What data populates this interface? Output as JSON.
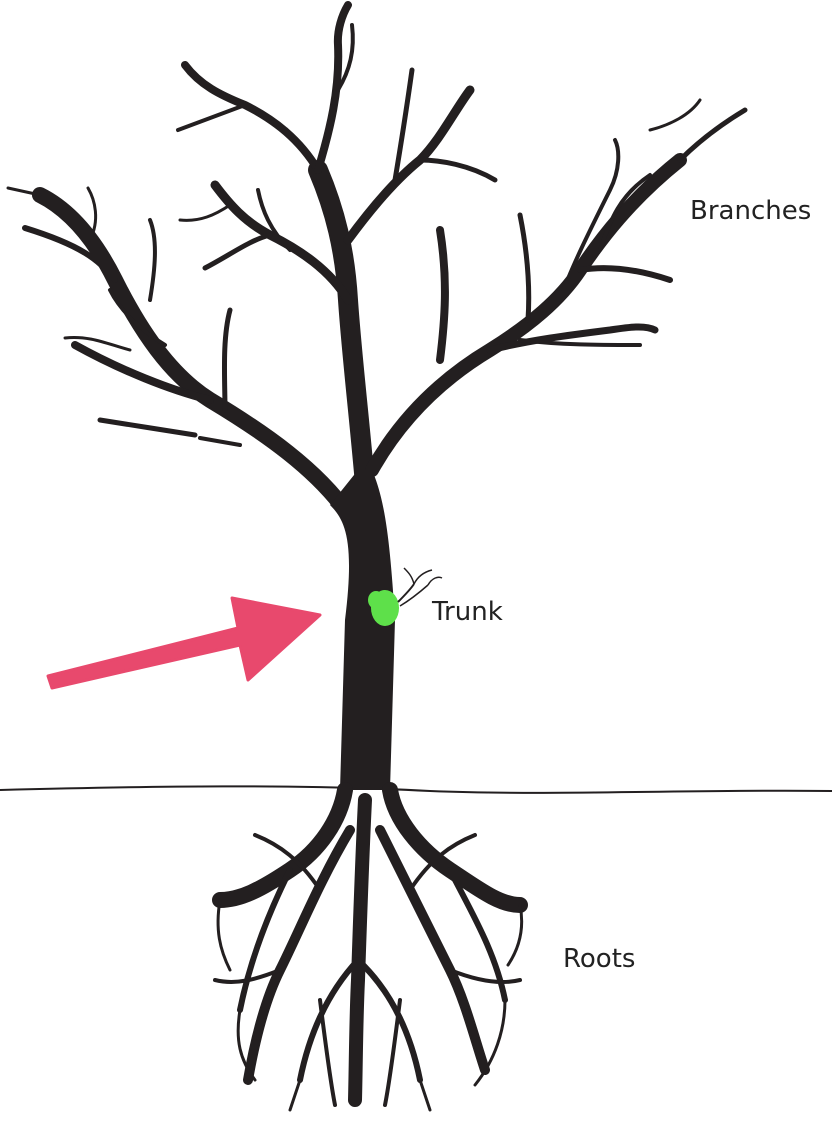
{
  "labels": {
    "branches": "Branches",
    "trunk": "Trunk",
    "roots": "Roots"
  },
  "colors": {
    "tree": "#231f20",
    "arrow": "#e8496d",
    "bug": "#5ee04a",
    "ground": "#231f20",
    "text": "#222222"
  },
  "icons": {
    "arrow": "pointer-arrow-icon",
    "bug": "green-bug-icon"
  }
}
